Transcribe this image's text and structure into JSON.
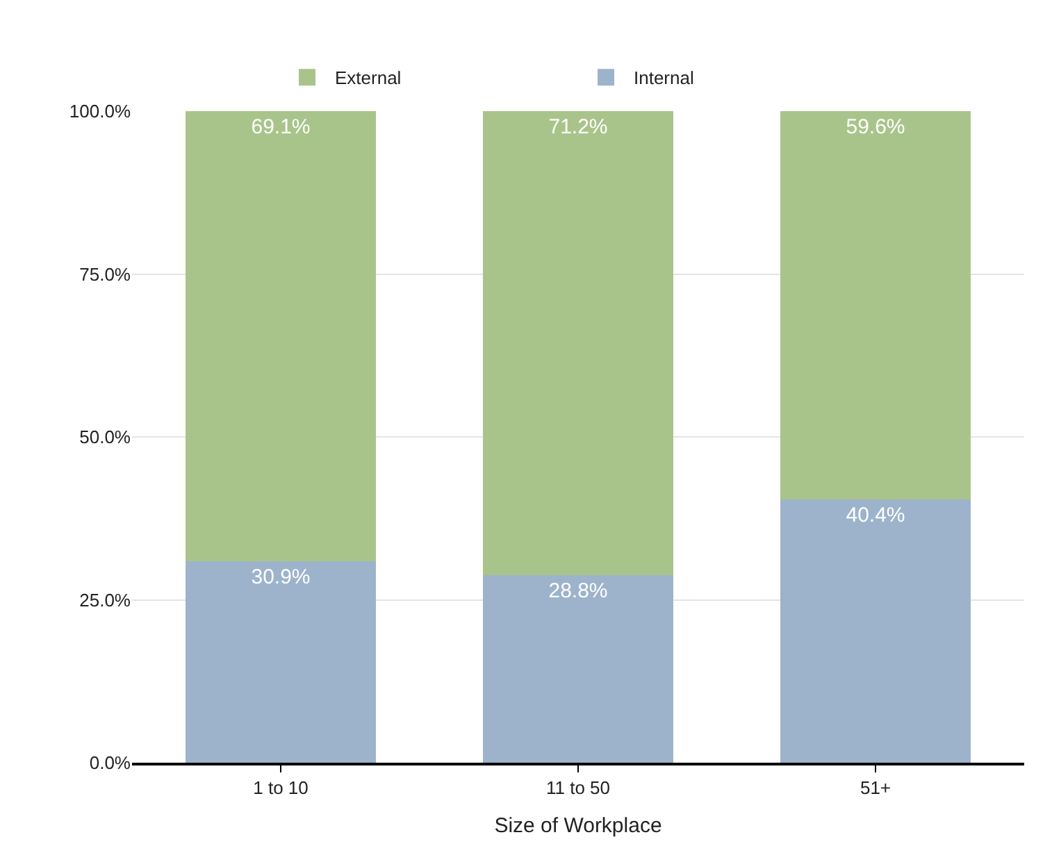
{
  "chart_data": {
    "type": "bar",
    "stacked": true,
    "xlabel": "Size of Workplace",
    "categories": [
      "1 to 10",
      "11 to 50",
      "51+"
    ],
    "series": [
      {
        "name": "Internal",
        "color": "#9db3cc",
        "values": [
          30.9,
          28.8,
          40.4
        ],
        "value_labels": [
          "30.9%",
          "28.8%",
          "40.4%"
        ]
      },
      {
        "name": "External",
        "color": "#a9c48a",
        "values": [
          69.1,
          71.2,
          59.6
        ],
        "value_labels": [
          "69.1%",
          "71.2%",
          "59.6%"
        ]
      }
    ],
    "ylim": [
      0,
      100
    ],
    "yticks": [
      {
        "value": 0,
        "label": "0.0%"
      },
      {
        "value": 25,
        "label": "25.0%"
      },
      {
        "value": 50,
        "label": "50.0%"
      },
      {
        "value": 75,
        "label": "75.0%"
      },
      {
        "value": 100,
        "label": "100.0%"
      }
    ],
    "grid": "y",
    "legend": "top"
  }
}
